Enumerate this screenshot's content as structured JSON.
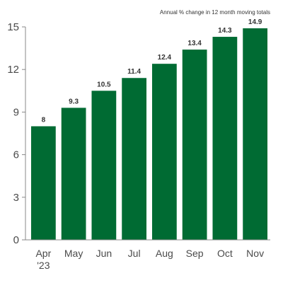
{
  "chart_data": {
    "type": "bar",
    "title": "",
    "subtitle": "Annual % change in 12 month moving totals",
    "xlabel": "",
    "ylabel": "",
    "categories": [
      [
        "Apr",
        "'23"
      ],
      [
        "May"
      ],
      [
        "Jun"
      ],
      [
        "Jul"
      ],
      [
        "Aug"
      ],
      [
        "Sep"
      ],
      [
        "Oct"
      ],
      [
        "Nov"
      ]
    ],
    "values": [
      8,
      9.3,
      10.5,
      11.4,
      12.4,
      13.4,
      14.3,
      14.9
    ],
    "data_labels": [
      "8",
      "9.3",
      "10.5",
      "11.4",
      "12.4",
      "13.4",
      "14.3",
      "14.9"
    ],
    "ylim": [
      0,
      15
    ],
    "yticks": [
      0,
      3,
      6,
      9,
      12,
      15
    ],
    "grid": false,
    "legend": "none",
    "bar_color": "#006b33",
    "axis_color": "#888888"
  }
}
